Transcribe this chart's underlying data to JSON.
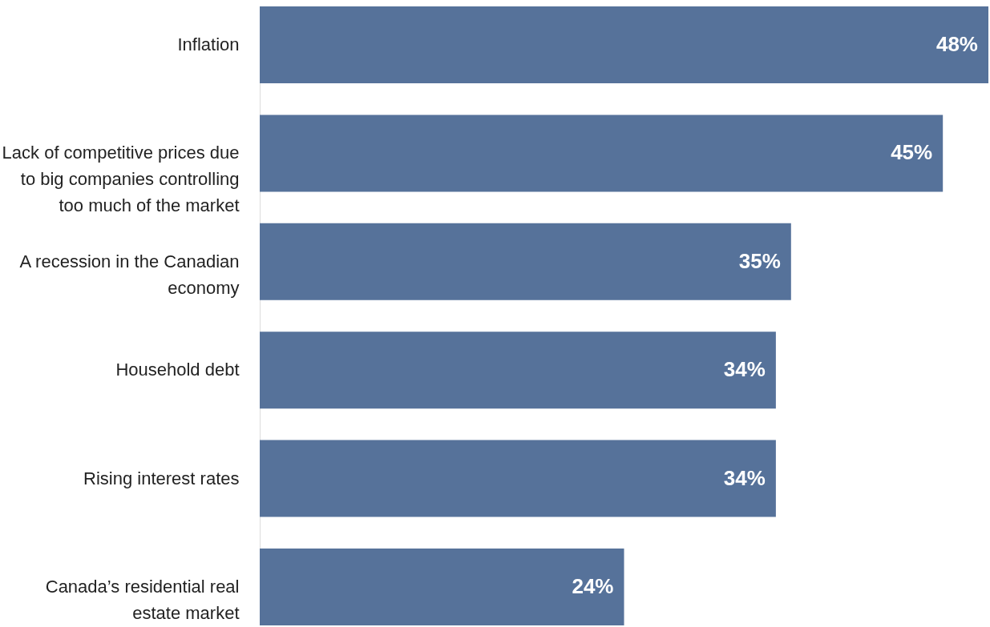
{
  "chart_data": {
    "type": "bar",
    "orientation": "horizontal",
    "categories": [
      "Inflation",
      "Lack of competitive prices due to big companies controlling too much of the market",
      "A recession in the Canadian economy",
      "Household debt",
      "Rising interest rates",
      "Canada’s residential real estate market"
    ],
    "values": [
      48,
      45,
      35,
      34,
      34,
      24
    ],
    "color": "#56729a",
    "value_labels": [
      "48%",
      "45%",
      "35%",
      "34%",
      "34%",
      "24%"
    ]
  }
}
